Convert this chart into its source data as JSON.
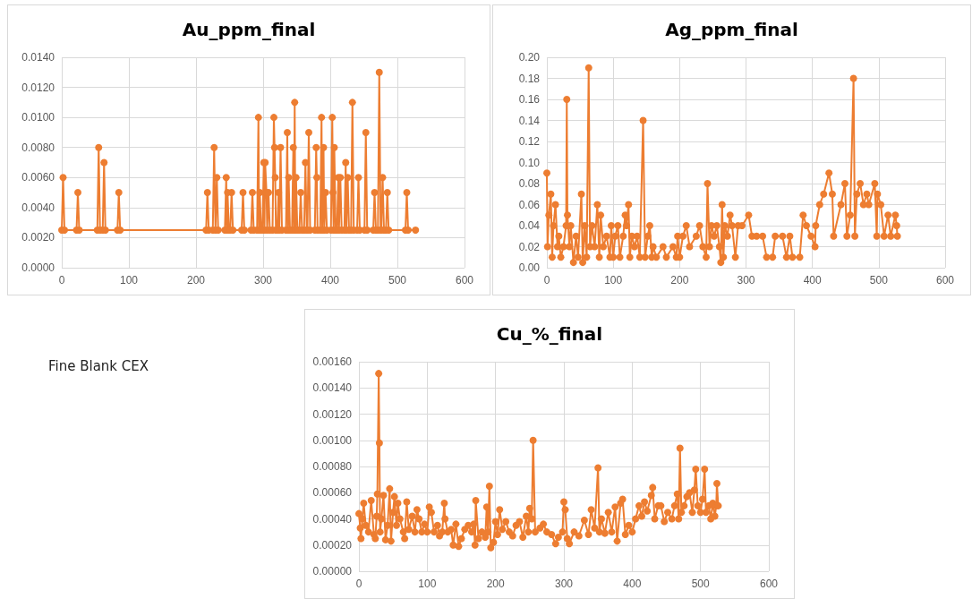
{
  "chart_data": [
    {
      "type": "line",
      "title": "Au_ppm_final",
      "marker": "circle",
      "grid": true,
      "xlim": [
        0,
        600
      ],
      "xticks": [
        0,
        100,
        200,
        300,
        400,
        500,
        600
      ],
      "ylim": [
        0,
        0.014
      ],
      "yticks": [
        {
          "value": 0,
          "label": "0.0000"
        },
        {
          "value": 0.002,
          "label": "0.0020"
        },
        {
          "value": 0.004,
          "label": "0.0040"
        },
        {
          "value": 0.006,
          "label": "0.0060"
        },
        {
          "value": 0.008,
          "label": "0.0080"
        },
        {
          "value": 0.01,
          "label": "0.0100"
        },
        {
          "value": 0.012,
          "label": "0.0120"
        },
        {
          "value": 0.014,
          "label": "0.0140"
        }
      ],
      "series": [
        {
          "color": "#ed7d31",
          "x": [
            0,
            2,
            4,
            22,
            24,
            26,
            53,
            55,
            57,
            61,
            63,
            65,
            83,
            85,
            87,
            215,
            217,
            219,
            225,
            227,
            229,
            231,
            233,
            243,
            245,
            246,
            247,
            249,
            251,
            253,
            255,
            268,
            270,
            272,
            282,
            284,
            286,
            291,
            293,
            294,
            295,
            297,
            299,
            301,
            302,
            303,
            305,
            306,
            308,
            310,
            314,
            316,
            317,
            318,
            319,
            321,
            323,
            324,
            326,
            328,
            334,
            336,
            337,
            338,
            340,
            343,
            345,
            346,
            347,
            348,
            349,
            351,
            354,
            356,
            358,
            361,
            363,
            365,
            366,
            368,
            370,
            377,
            379,
            380,
            381,
            385,
            387,
            388,
            390,
            391,
            393,
            395,
            401,
            403,
            404,
            405,
            406,
            408,
            410,
            412,
            413,
            415,
            417,
            421,
            423,
            424,
            426,
            428,
            431,
            433,
            435,
            440,
            442,
            444,
            451,
            453,
            455,
            464,
            466,
            468,
            471,
            473,
            475,
            476,
            478,
            480,
            483,
            485,
            487,
            512,
            514,
            516,
            527
          ],
          "values": [
            0.0025,
            0.006,
            0.0025,
            0.0025,
            0.005,
            0.0025,
            0.0025,
            0.008,
            0.0025,
            0.0025,
            0.007,
            0.0025,
            0.0025,
            0.005,
            0.0025,
            0.0025,
            0.005,
            0.0025,
            0.0025,
            0.008,
            0.0025,
            0.006,
            0.0025,
            0.0025,
            0.006,
            0.0025,
            0.005,
            0.0025,
            0.0025,
            0.005,
            0.0025,
            0.0025,
            0.005,
            0.0025,
            0.0025,
            0.005,
            0.0025,
            0.0025,
            0.01,
            0.0025,
            0.005,
            0.0025,
            0.0025,
            0.007,
            0.0025,
            0.007,
            0.005,
            0.0025,
            0.005,
            0.0025,
            0.0025,
            0.01,
            0.008,
            0.006,
            0.0025,
            0.0025,
            0.005,
            0.0025,
            0.008,
            0.0025,
            0.0025,
            0.009,
            0.0025,
            0.006,
            0.0025,
            0.0025,
            0.008,
            0.0025,
            0.011,
            0.0025,
            0.006,
            0.0025,
            0.0025,
            0.005,
            0.0025,
            0.0025,
            0.007,
            0.0025,
            0.0025,
            0.009,
            0.0025,
            0.0025,
            0.008,
            0.006,
            0.0025,
            0.0025,
            0.01,
            0.0025,
            0.008,
            0.0025,
            0.005,
            0.0025,
            0.0025,
            0.01,
            0.005,
            0.0025,
            0.008,
            0.0025,
            0.0025,
            0.006,
            0.0025,
            0.006,
            0.0025,
            0.0025,
            0.007,
            0.0025,
            0.006,
            0.0025,
            0.0025,
            0.011,
            0.0025,
            0.0025,
            0.006,
            0.0025,
            0.0025,
            0.009,
            0.0025,
            0.0025,
            0.005,
            0.0025,
            0.0025,
            0.013,
            0.0025,
            0.0025,
            0.006,
            0.0025,
            0.0025,
            0.005,
            0.0025,
            0.0025,
            0.005,
            0.0025,
            0.0025
          ]
        }
      ]
    },
    {
      "type": "line",
      "title": "Ag_ppm_final",
      "marker": "circle",
      "grid": true,
      "xlim": [
        0,
        600
      ],
      "xticks": [
        0,
        100,
        200,
        300,
        400,
        500,
        600
      ],
      "ylim": [
        0,
        0.2
      ],
      "yticks": [
        {
          "value": 0,
          "label": "0.00"
        },
        {
          "value": 0.02,
          "label": "0.02"
        },
        {
          "value": 0.04,
          "label": "0.04"
        },
        {
          "value": 0.06,
          "label": "0.06"
        },
        {
          "value": 0.08,
          "label": "0.08"
        },
        {
          "value": 0.1,
          "label": "0.10"
        },
        {
          "value": 0.12,
          "label": "0.12"
        },
        {
          "value": 0.14,
          "label": "0.14"
        },
        {
          "value": 0.16,
          "label": "0.16"
        },
        {
          "value": 0.18,
          "label": "0.18"
        },
        {
          "value": 0.2,
          "label": "0.20"
        }
      ],
      "series": [
        {
          "color": "#ed7d31",
          "x": [
            0,
            1,
            3,
            6,
            8,
            10,
            13,
            16,
            18,
            21,
            25,
            29,
            30,
            31,
            34,
            36,
            40,
            44,
            47,
            52,
            54,
            57,
            60,
            63,
            65,
            68,
            72,
            76,
            79,
            81,
            85,
            90,
            95,
            97,
            100,
            103,
            107,
            110,
            115,
            118,
            120,
            123,
            125,
            128,
            132,
            136,
            140,
            145,
            148,
            152,
            155,
            158,
            160,
            165,
            175,
            180,
            190,
            195,
            197,
            200,
            205,
            210,
            215,
            225,
            230,
            235,
            240,
            242,
            245,
            248,
            252,
            256,
            260,
            262,
            264,
            266,
            268,
            272,
            276,
            279,
            284,
            288,
            294,
            304,
            309,
            316,
            325,
            331,
            340,
            344,
            355,
            361,
            366,
            370,
            381,
            386,
            391,
            398,
            404,
            405,
            411,
            417,
            425,
            430,
            432,
            443,
            449,
            452,
            457,
            462,
            464,
            467,
            472,
            477,
            482,
            485,
            494,
            497,
            498,
            503,
            508,
            514,
            518,
            525,
            527,
            528
          ],
          "values": [
            0.09,
            0.02,
            0.05,
            0.07,
            0.01,
            0.04,
            0.06,
            0.02,
            0.03,
            0.01,
            0.02,
            0.04,
            0.16,
            0.05,
            0.02,
            0.04,
            0.005,
            0.03,
            0.01,
            0.07,
            0.005,
            0.04,
            0.01,
            0.19,
            0.02,
            0.04,
            0.02,
            0.06,
            0.01,
            0.05,
            0.02,
            0.03,
            0.01,
            0.04,
            0.01,
            0.03,
            0.04,
            0.01,
            0.03,
            0.05,
            0.04,
            0.06,
            0.01,
            0.03,
            0.02,
            0.03,
            0.01,
            0.14,
            0.01,
            0.03,
            0.04,
            0.01,
            0.02,
            0.01,
            0.02,
            0.01,
            0.02,
            0.01,
            0.03,
            0.01,
            0.03,
            0.04,
            0.02,
            0.03,
            0.04,
            0.02,
            0.01,
            0.08,
            0.02,
            0.04,
            0.03,
            0.04,
            0.02,
            0.005,
            0.06,
            0.01,
            0.04,
            0.03,
            0.05,
            0.04,
            0.01,
            0.04,
            0.04,
            0.05,
            0.03,
            0.03,
            0.03,
            0.01,
            0.01,
            0.03,
            0.03,
            0.01,
            0.03,
            0.01,
            0.01,
            0.05,
            0.04,
            0.03,
            0.02,
            0.04,
            0.06,
            0.07,
            0.09,
            0.07,
            0.03,
            0.06,
            0.08,
            0.03,
            0.05,
            0.18,
            0.03,
            0.07,
            0.08,
            0.06,
            0.07,
            0.06,
            0.08,
            0.03,
            0.07,
            0.06,
            0.03,
            0.05,
            0.03,
            0.05,
            0.04,
            0.03
          ]
        }
      ]
    },
    {
      "type": "line",
      "title": "Cu_%_final",
      "marker": "circle",
      "grid": true,
      "xlim": [
        0,
        600
      ],
      "xticks": [
        0,
        100,
        200,
        300,
        400,
        500,
        600
      ],
      "ylim": [
        0,
        0.0016
      ],
      "yticks": [
        {
          "value": 0,
          "label": "0.00000"
        },
        {
          "value": 0.0002,
          "label": "0.00020"
        },
        {
          "value": 0.0004,
          "label": "0.00040"
        },
        {
          "value": 0.0006,
          "label": "0.00060"
        },
        {
          "value": 0.0008,
          "label": "0.00080"
        },
        {
          "value": 0.001,
          "label": "0.00100"
        },
        {
          "value": 0.0012,
          "label": "0.00120"
        },
        {
          "value": 0.0014,
          "label": "0.00140"
        },
        {
          "value": 0.0016,
          "label": "0.00160"
        }
      ],
      "series": [
        {
          "color": "#ed7d31",
          "x": [
            0,
            2,
            3,
            5,
            7,
            10,
            14,
            18,
            22,
            24,
            26,
            27,
            29,
            30,
            31,
            33,
            36,
            39,
            42,
            45,
            47,
            50,
            52,
            55,
            57,
            60,
            65,
            67,
            70,
            73,
            78,
            82,
            85,
            88,
            92,
            96,
            100,
            103,
            106,
            110,
            115,
            118,
            122,
            125,
            126,
            130,
            135,
            138,
            142,
            146,
            150,
            155,
            160,
            165,
            168,
            170,
            171,
            175,
            180,
            185,
            187,
            189,
            191,
            193,
            197,
            200,
            203,
            206,
            210,
            215,
            220,
            225,
            230,
            235,
            240,
            245,
            248,
            250,
            253,
            255,
            258,
            265,
            270,
            275,
            282,
            288,
            292,
            298,
            300,
            302,
            305,
            308,
            315,
            322,
            330,
            336,
            340,
            345,
            350,
            352,
            355,
            360,
            365,
            370,
            375,
            378,
            383,
            386,
            390,
            395,
            400,
            405,
            410,
            414,
            418,
            422,
            428,
            430,
            433,
            438,
            442,
            447,
            452,
            458,
            462,
            466,
            468,
            470,
            472,
            476,
            480,
            484,
            488,
            491,
            493,
            496,
            500,
            503,
            506,
            508,
            512,
            515,
            518,
            521,
            523,
            524,
            526
          ],
          "values": [
            0.00044,
            0.00033,
            0.00025,
            0.0004,
            0.00052,
            0.00035,
            0.0003,
            0.00054,
            0.00028,
            0.00025,
            0.00042,
            0.00059,
            0.00151,
            0.00098,
            0.0003,
            0.0004,
            0.00058,
            0.00024,
            0.00035,
            0.00063,
            0.00023,
            0.00045,
            0.00057,
            0.00035,
            0.00052,
            0.0004,
            0.0003,
            0.00025,
            0.00053,
            0.00032,
            0.00042,
            0.0003,
            0.00047,
            0.0004,
            0.0003,
            0.00036,
            0.0003,
            0.00049,
            0.00045,
            0.0003,
            0.00035,
            0.00027,
            0.0003,
            0.00052,
            0.0004,
            0.0003,
            0.00032,
            0.0002,
            0.00036,
            0.00019,
            0.00025,
            0.00032,
            0.00035,
            0.0003,
            0.00036,
            0.0002,
            0.00054,
            0.00025,
            0.0003,
            0.00026,
            0.00049,
            0.0003,
            0.00065,
            0.00018,
            0.00022,
            0.00038,
            0.00028,
            0.00047,
            0.00032,
            0.00038,
            0.0003,
            0.00027,
            0.00035,
            0.00038,
            0.00026,
            0.00042,
            0.0003,
            0.00048,
            0.0004,
            0.001,
            0.0003,
            0.00033,
            0.00036,
            0.0003,
            0.00028,
            0.00021,
            0.00026,
            0.0003,
            0.00053,
            0.00047,
            0.00025,
            0.00021,
            0.0003,
            0.00027,
            0.00039,
            0.00028,
            0.00047,
            0.00033,
            0.00079,
            0.0003,
            0.0004,
            0.00029,
            0.00045,
            0.0003,
            0.00049,
            0.00023,
            0.00052,
            0.00055,
            0.00028,
            0.00035,
            0.0003,
            0.0004,
            0.0005,
            0.00042,
            0.00053,
            0.00046,
            0.00058,
            0.00064,
            0.0004,
            0.0005,
            0.0005,
            0.00038,
            0.00045,
            0.0004,
            0.0005,
            0.00059,
            0.0004,
            0.00094,
            0.00045,
            0.0005,
            0.00057,
            0.0006,
            0.00045,
            0.00062,
            0.00078,
            0.0005,
            0.00045,
            0.00055,
            0.00078,
            0.00045,
            0.0005,
            0.0004,
            0.00052,
            0.00042,
            0.0005,
            0.00067,
            0.0005
          ]
        }
      ]
    },
    {
      "type": "other",
      "annotations": [
        "Fine Blank CEX"
      ]
    }
  ]
}
